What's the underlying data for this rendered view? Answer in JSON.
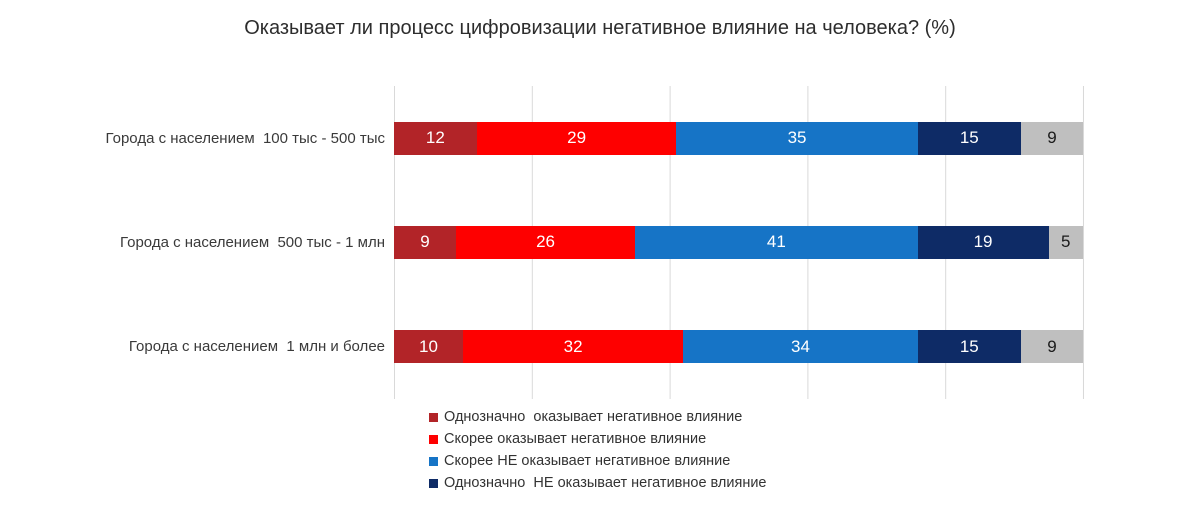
{
  "title": "Оказывает ли процесс цифровизации негативное влияние на человека? (%)",
  "colors": {
    "definitely_negative": "#B22428",
    "rather_negative": "#FE0000",
    "rather_not_negative": "#1674C6",
    "definitely_not_negative": "#0E2B66",
    "no_answer_gray": "#BFBFBF",
    "gridline": "#D9D9D9",
    "title_text": "#2D2D2D",
    "label_text": "#3A3A3A"
  },
  "chart_data": {
    "type": "bar",
    "stacked": true,
    "orientation": "horizontal",
    "title": "Оказывает ли процесс цифровизации негативное влияние на человека? (%)",
    "categories": [
      "Города с населением  100 тыс - 500 тыс",
      "Города с населением  500 тыс - 1 млн",
      "Города с населением  1 млн и более"
    ],
    "series": [
      {
        "name": "Однозначно  оказывает негативное влияние",
        "color": "#B22428",
        "in_legend": true,
        "values": [
          12,
          9,
          10
        ]
      },
      {
        "name": "Скорее оказывает негативное влияние",
        "color": "#FE0000",
        "in_legend": true,
        "values": [
          29,
          26,
          32
        ]
      },
      {
        "name": "Скорее НЕ оказывает негативное влияние",
        "color": "#1674C6",
        "in_legend": true,
        "values": [
          35,
          41,
          34
        ]
      },
      {
        "name": "Однозначно  НЕ оказывает негативное влияние",
        "color": "#0E2B66",
        "in_legend": true,
        "values": [
          15,
          19,
          15
        ]
      },
      {
        "name": "",
        "color": "#BFBFBF",
        "in_legend": false,
        "values": [
          9,
          5,
          9
        ]
      }
    ],
    "xlim": [
      0,
      100
    ],
    "gridlines": [
      0,
      20,
      40,
      60,
      80,
      100
    ],
    "grid": true,
    "legend_position": "bottom",
    "value_labels": "inside"
  },
  "rows": [
    {
      "label": "Города с населением  100 тыс - 500 тыс",
      "values": [
        12,
        29,
        35,
        15,
        9
      ]
    },
    {
      "label": "Города с населением  500 тыс - 1 млн",
      "values": [
        9,
        26,
        41,
        19,
        5
      ]
    },
    {
      "label": "Города с населением  1 млн и более",
      "values": [
        10,
        32,
        34,
        15,
        9
      ]
    }
  ],
  "legend": [
    {
      "label": "Однозначно  оказывает негативное влияние",
      "color": "#B22428"
    },
    {
      "label": "Скорее оказывает негативное влияние",
      "color": "#FE0000"
    },
    {
      "label": "Скорее НЕ оказывает негативное влияние",
      "color": "#1674C6"
    },
    {
      "label": "Однозначно  НЕ оказывает негативное влияние",
      "color": "#0E2B66"
    }
  ]
}
